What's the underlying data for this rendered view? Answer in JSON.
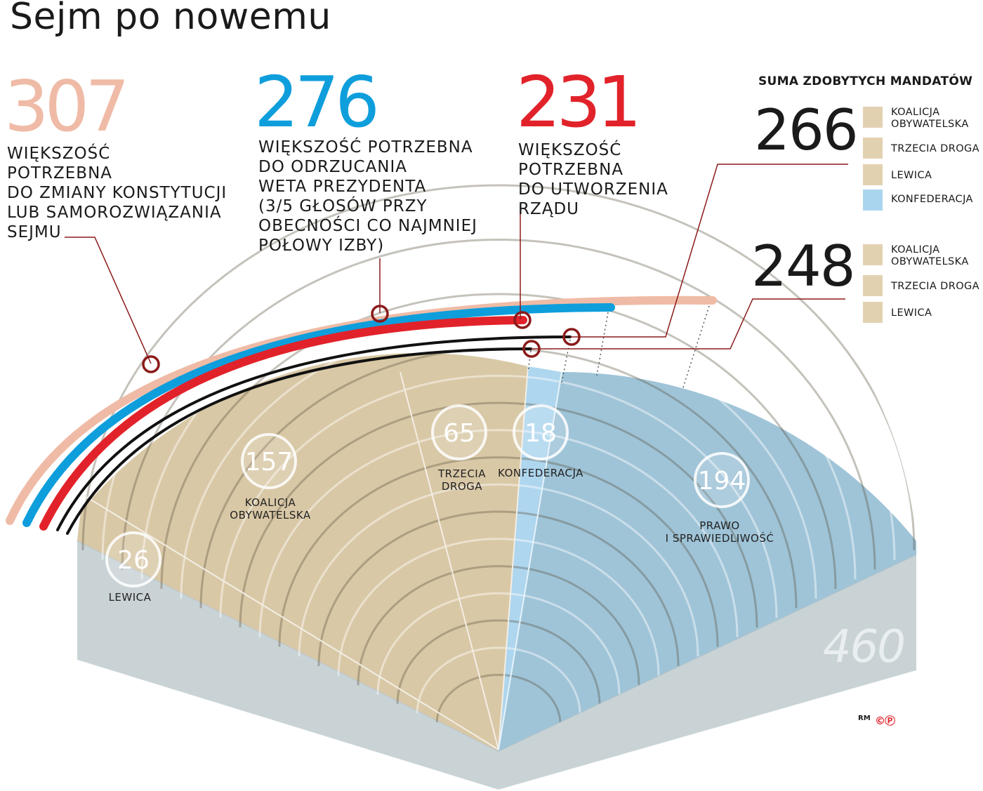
{
  "title": "Sejm po nowemu",
  "thresholds": [
    {
      "value": "307",
      "color": "#efbba6",
      "text": "WIĘKSZOŚĆ\nPOTRZEBNA\nDO ZMIANY KONSTYTUCJI\nLUB SAMOROZWIĄZANIA\nSEJMU"
    },
    {
      "value": "276",
      "color": "#0e9edc",
      "text": "WIĘKSZOŚĆ POTRZEBNA\nDO ODRZUCANIA\nWETA PREZYDENTA\n(3/5 GŁOSÓW PRZY\nOBECNOŚCI CO NAJMNIEJ\nPOŁOWY IZBY)"
    },
    {
      "value": "231",
      "color": "#e2222a",
      "text": "WIĘKSZOŚĆ\nPOTRZEBNA\nDO UTWORZENIA\nRZĄDU"
    }
  ],
  "summary": {
    "title": "SUMA ZDOBYTYCH MANDATÓW",
    "groups": [
      {
        "total": "266",
        "items": [
          {
            "label": "KOALICJA\nOBYWATELSKA",
            "color": "#e2d1b1"
          },
          {
            "label": "TRZECIA DROGA",
            "color": "#e2d1b1"
          },
          {
            "label": "LEWICA",
            "color": "#e2d1b1"
          },
          {
            "label": "KONFEDERACJA",
            "color": "#a9d6ee"
          }
        ]
      },
      {
        "total": "248",
        "items": [
          {
            "label": "KOALICJA\nOBYWATELSKA",
            "color": "#e2d1b1"
          },
          {
            "label": "TRZECIA DROGA",
            "color": "#e2d1b1"
          },
          {
            "label": "LEWICA",
            "color": "#e2d1b1"
          }
        ]
      }
    ]
  },
  "parties": [
    {
      "name": "LEWICA",
      "seats": 26
    },
    {
      "name": "KOALICJA\nOBYWATELSKA",
      "seats": 157
    },
    {
      "name": "TRZECIA\nDROGA",
      "seats": 65
    },
    {
      "name": "KONFEDERACJA",
      "seats": 18
    },
    {
      "name": "PRAWO\nI SPRAWIEDLIWOŚĆ",
      "seats": 194
    }
  ],
  "total_seats": "460",
  "credit": "RM",
  "copyright": "©Ⓟ",
  "colors": {
    "coalition_tan": "#d9c8a6",
    "pis_blue": "#9fc4d8",
    "konf_light_blue": "#aed6ee",
    "base_gray": "#c9d3d6",
    "marker_dark_red": "#8b1a1a"
  }
}
